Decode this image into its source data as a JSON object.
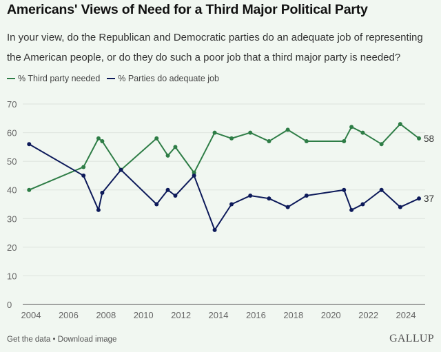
{
  "header": {
    "title": "Americans' Views of Need for a Third Major Political Party",
    "subtitle": "In your view, do the Republican and Democratic parties do an adequate job of representing the American people, or do they do such a poor job that a third major party is needed?"
  },
  "footer": {
    "get_data": "Get the data",
    "separator": " • ",
    "download": "Download image",
    "brand": "GALLUP"
  },
  "colors": {
    "third_party": "#2e7d46",
    "adequate": "#0d1a5a",
    "grid": "#dde3dd",
    "axis": "#888888",
    "tick_text": "#666666"
  },
  "chart_data": {
    "type": "line",
    "title": "Americans' Views of Need for a Third Major Political Party",
    "xlabel": "",
    "ylabel": "",
    "xlim": [
      2003.9,
      2025.2
    ],
    "ylim": [
      0,
      70
    ],
    "x_ticks": [
      2004,
      2006,
      2008,
      2010,
      2012,
      2014,
      2016,
      2018,
      2020,
      2022,
      2024
    ],
    "y_ticks": [
      0,
      10,
      20,
      30,
      40,
      50,
      60,
      70
    ],
    "grid": true,
    "legend_position": "top-left",
    "x": [
      2003.9,
      2006.8,
      2007.6,
      2007.8,
      2008.8,
      2010.7,
      2011.3,
      2011.7,
      2012.7,
      2013.8,
      2014.7,
      2015.7,
      2016.7,
      2017.7,
      2018.7,
      2020.7,
      2021.1,
      2021.7,
      2022.7,
      2023.7,
      2024.7
    ],
    "series": [
      {
        "name": "% Third party needed",
        "color": "#2e7d46",
        "values": [
          40,
          48,
          58,
          57,
          47,
          58,
          52,
          55,
          46,
          60,
          58,
          60,
          57,
          61,
          57,
          57,
          62,
          60,
          56,
          63,
          58
        ],
        "end_label": "58"
      },
      {
        "name": "% Parties do adequate job",
        "color": "#0d1a5a",
        "values": [
          56,
          45,
          33,
          39,
          47,
          35,
          40,
          38,
          45,
          26,
          35,
          38,
          37,
          34,
          38,
          40,
          33,
          35,
          40,
          34,
          37
        ],
        "end_label": "37"
      }
    ]
  }
}
